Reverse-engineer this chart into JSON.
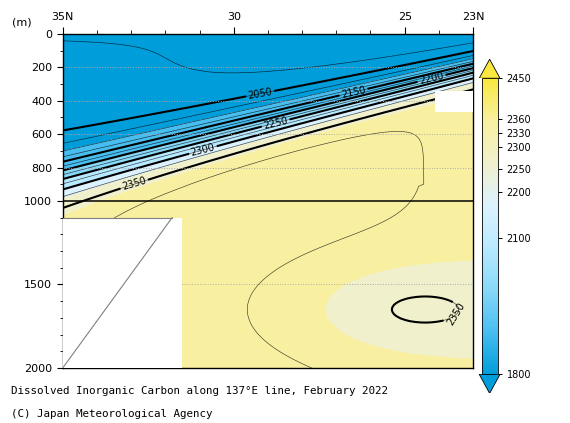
{
  "title": "Dissolved Inorganic Carbon along 137°E line, February 2022",
  "subtitle": "(C) Japan Meteorological Agency",
  "lat_ticks": [
    35,
    30,
    25,
    23
  ],
  "lat_labels": [
    "35N",
    "30",
    "25",
    "23N"
  ],
  "depth_ticks": [
    0,
    200,
    400,
    600,
    800,
    1000,
    1500,
    2000
  ],
  "ylabel": "(m)",
  "depth_min": 0,
  "depth_max": 2000,
  "lat_min": 23,
  "lat_max": 35,
  "colorbar_levels": [
    1800,
    2100,
    2200,
    2250,
    2300,
    2330,
    2360,
    2450
  ],
  "colorbar_colors": [
    "#009ddb",
    "#48bef0",
    "#88d8f8",
    "#b8eaff",
    "#ddf2ff",
    "#f0f0cc",
    "#f8f0a0",
    "#f8e840"
  ],
  "contour_levels_major": [
    2050,
    2150,
    2200,
    2250,
    2300,
    2350
  ],
  "background_color": "#ffffff",
  "fig_width": 5.7,
  "fig_height": 4.23,
  "dpi": 100
}
